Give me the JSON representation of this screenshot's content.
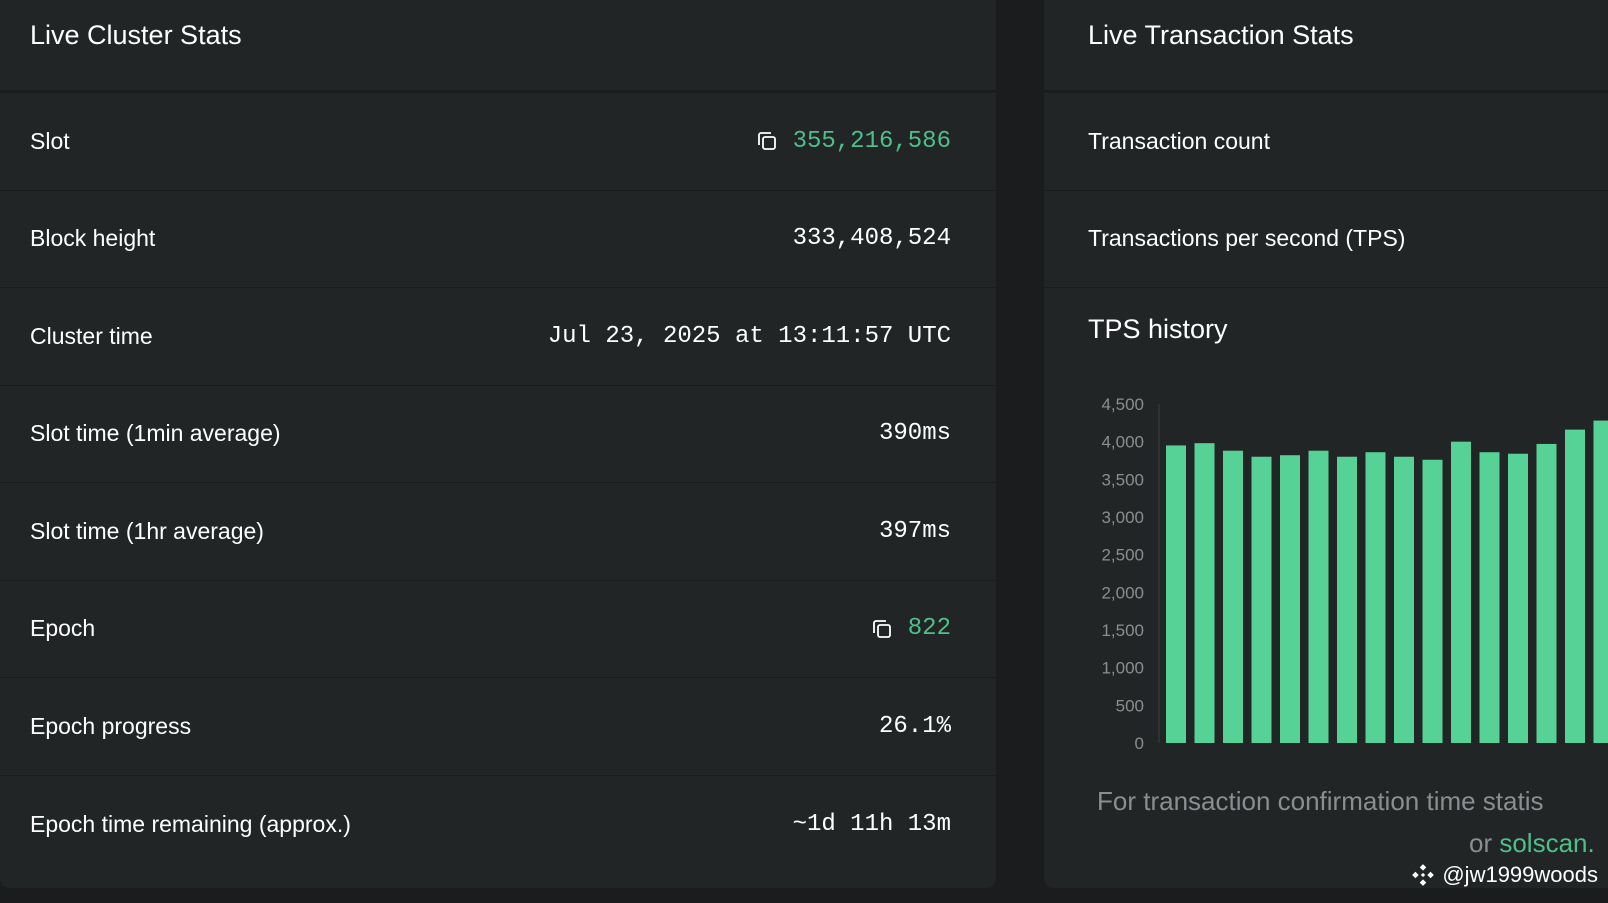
{
  "cluster": {
    "title": "Live Cluster Stats",
    "rows": [
      {
        "label": "Slot",
        "value": "355,216,586"
      },
      {
        "label": "Block height",
        "value": "333,408,524"
      },
      {
        "label": "Cluster time",
        "value": "Jul 23, 2025 at 13:11:57 UTC"
      },
      {
        "label": "Slot time (1min average)",
        "value": "390ms"
      },
      {
        "label": "Slot time (1hr average)",
        "value": "397ms"
      },
      {
        "label": "Epoch",
        "value": "822"
      },
      {
        "label": "Epoch progress",
        "value": "26.1%"
      },
      {
        "label": "Epoch time remaining (approx.)",
        "value": "~1d 11h 13m"
      }
    ]
  },
  "transactions": {
    "title": "Live Transaction Stats",
    "rows": [
      {
        "label": "Transaction count"
      },
      {
        "label": "Transactions per second (TPS)"
      }
    ],
    "tps_title": "TPS history",
    "footer_line1": "For transaction confirmation time statis",
    "footer_or": "or ",
    "footer_link": "solscan."
  },
  "chart_data": {
    "type": "bar",
    "yticks": [
      0,
      500,
      1000,
      1500,
      2000,
      2500,
      3000,
      3500,
      4000,
      4500
    ],
    "ylim": [
      0,
      4500
    ],
    "values": [
      3950,
      3980,
      3880,
      3800,
      3820,
      3880,
      3800,
      3860,
      3800,
      3760,
      4000,
      3860,
      3840,
      3970,
      4160,
      4280
    ],
    "color": "#56d296",
    "grid": false
  },
  "watermark": "@jw1999woods",
  "colors": {
    "accent": "#4fbf8a",
    "bar": "#56d296",
    "card": "#212526",
    "page": "#1a1c1d"
  }
}
